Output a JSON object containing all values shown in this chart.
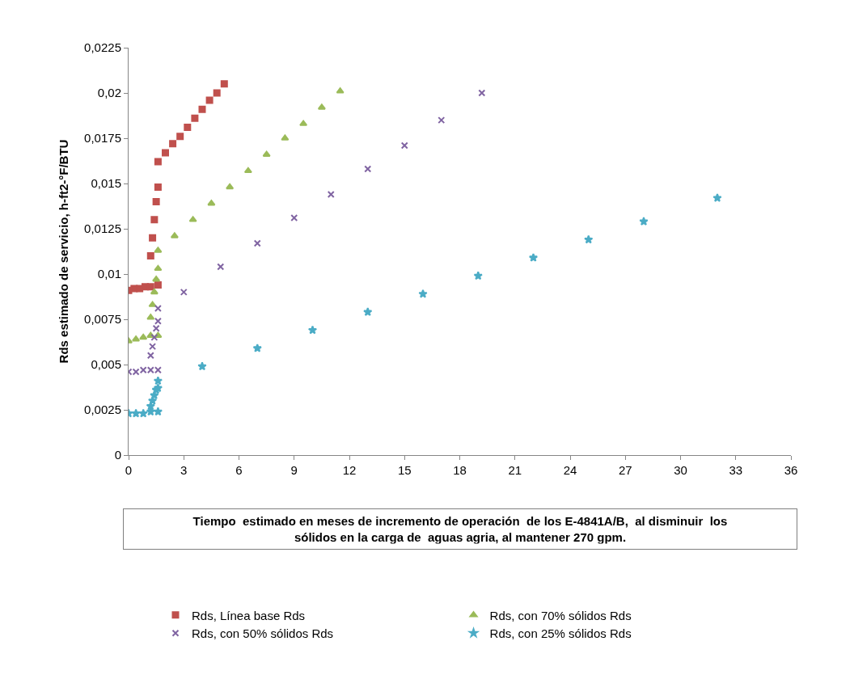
{
  "chart_data": {
    "type": "scatter",
    "xlabel": "Tiempo  estimado en meses de incremento de operación  de los E-4841A/B,  al disminuir  los sólidos en la carga de  aguas agria, al mantener 270 gpm.",
    "ylabel": "Rds estimado de servicio, h-ft2-°F/BTU",
    "xlim": [
      0,
      36
    ],
    "xticks": [
      0,
      3,
      6,
      9,
      12,
      15,
      18,
      21,
      24,
      27,
      30,
      33,
      36
    ],
    "ylim": [
      0,
      0.0225
    ],
    "yticks": [
      {
        "value": 0,
        "label": "0"
      },
      {
        "value": 0.0025,
        "label": "0,0025"
      },
      {
        "value": 0.005,
        "label": "0,005"
      },
      {
        "value": 0.0075,
        "label": "0,0075"
      },
      {
        "value": 0.01,
        "label": "0,01"
      },
      {
        "value": 0.0125,
        "label": "0,0125"
      },
      {
        "value": 0.015,
        "label": "0,015"
      },
      {
        "value": 0.0175,
        "label": "0,0175"
      },
      {
        "value": 0.02,
        "label": "0,02"
      },
      {
        "value": 0.0225,
        "label": "0,0225"
      }
    ],
    "legend": "bottom",
    "series": [
      {
        "name": "Rds, Línea base Rds",
        "color": "#c0504d",
        "marker": "square",
        "x": [
          0,
          0.3,
          0.6,
          0.9,
          1.2,
          1.6,
          1.2,
          1.3,
          1.4,
          1.5,
          1.6,
          1.6,
          2.0,
          2.4,
          2.8,
          3.2,
          3.6,
          4.0,
          4.4,
          4.8,
          5.2
        ],
        "values": [
          0.0091,
          0.0092,
          0.0092,
          0.0093,
          0.0093,
          0.0094,
          0.011,
          0.012,
          0.013,
          0.014,
          0.0148,
          0.0162,
          0.0167,
          0.0172,
          0.0176,
          0.0181,
          0.0186,
          0.0191,
          0.0196,
          0.02,
          0.0205
        ]
      },
      {
        "name": "Rds, con 70% sólidos Rds",
        "color": "#9bbb59",
        "marker": "triangle",
        "x": [
          0,
          0.4,
          0.8,
          1.2,
          1.6,
          1.2,
          1.3,
          1.4,
          1.5,
          1.6,
          1.6,
          2.5,
          3.5,
          4.5,
          5.5,
          6.5,
          7.5,
          8.5,
          9.5,
          10.5,
          11.5
        ],
        "values": [
          0.0063,
          0.0064,
          0.0065,
          0.0066,
          0.0066,
          0.0076,
          0.0083,
          0.009,
          0.0097,
          0.0103,
          0.0113,
          0.0121,
          0.013,
          0.0139,
          0.0148,
          0.0157,
          0.0166,
          0.0175,
          0.0183,
          0.0192,
          0.0201
        ]
      },
      {
        "name": "Rds, con 50% sólidos Rds",
        "color": "#8064a2",
        "marker": "cross",
        "x": [
          0,
          0.4,
          0.8,
          1.2,
          1.6,
          1.2,
          1.3,
          1.4,
          1.5,
          1.6,
          1.6,
          3,
          5,
          7,
          9,
          11,
          13,
          15,
          17,
          19.2
        ],
        "values": [
          0.0046,
          0.0046,
          0.0047,
          0.0047,
          0.0047,
          0.0055,
          0.006,
          0.0065,
          0.007,
          0.0074,
          0.0081,
          0.009,
          0.0104,
          0.0117,
          0.0131,
          0.0144,
          0.0158,
          0.0171,
          0.0185,
          0.02
        ]
      },
      {
        "name": "Rds, con 25% sólidos Rds",
        "color": "#4bacc6",
        "marker": "star",
        "x": [
          0,
          0.4,
          0.8,
          1.2,
          1.6,
          1.2,
          1.3,
          1.4,
          1.5,
          1.6,
          1.6,
          4,
          7,
          10,
          13,
          16,
          19,
          22,
          25,
          28,
          32
        ],
        "values": [
          0.0023,
          0.0023,
          0.0023,
          0.0024,
          0.0024,
          0.0027,
          0.003,
          0.0033,
          0.0036,
          0.0037,
          0.0041,
          0.0049,
          0.0059,
          0.0069,
          0.0079,
          0.0089,
          0.0099,
          0.0109,
          0.0119,
          0.0129,
          0.0142
        ]
      }
    ]
  }
}
